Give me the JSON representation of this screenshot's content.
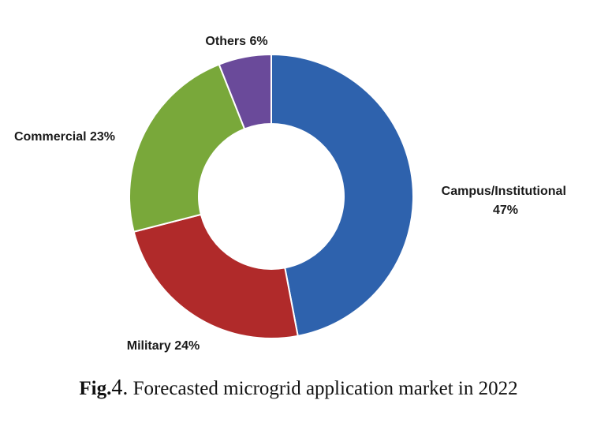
{
  "chart_data": {
    "type": "pie",
    "donut": true,
    "start_angle_deg": 0,
    "direction": "clockwise",
    "slices": [
      {
        "label": "Campus/Institutional",
        "value_text": "47%",
        "value": 47,
        "color": "#2e62ad"
      },
      {
        "label": "Military",
        "value_text": "24%",
        "value": 24,
        "color": "#b02a2a"
      },
      {
        "label": "Commercial",
        "value_text": "23%",
        "value": 23,
        "color": "#79a83a"
      },
      {
        "label": "Others",
        "value_text": "6%",
        "value": 6,
        "color": "#6a4a9a"
      }
    ],
    "legend": "none"
  },
  "caption": {
    "label": "Fig.",
    "number": "4.",
    "text": "Forecasted microgrid application market in 2022"
  }
}
